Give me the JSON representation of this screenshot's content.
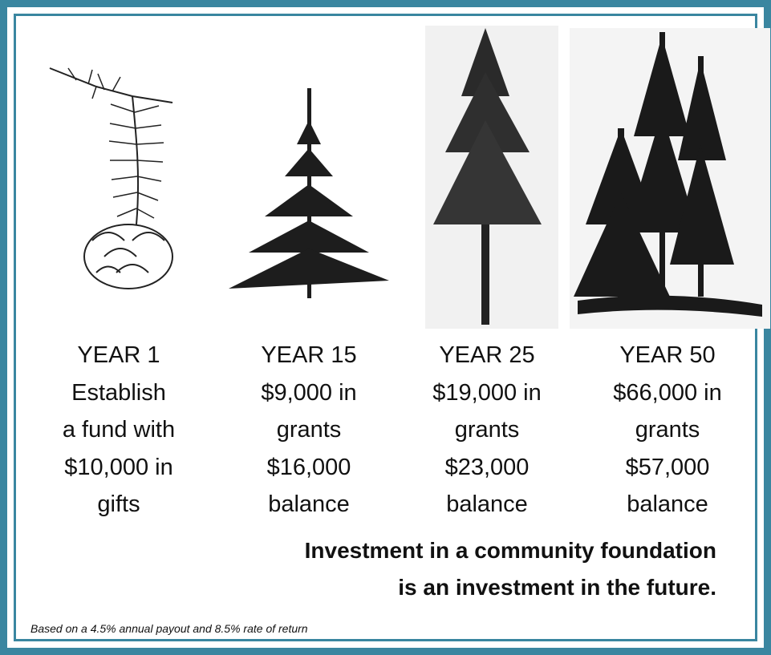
{
  "columns": [
    {
      "lines": [
        "YEAR 1",
        "Establish",
        "a fund with",
        "$10,000 in",
        "gifts"
      ]
    },
    {
      "lines": [
        "YEAR 15",
        "$9,000 in",
        "grants",
        "$16,000",
        "balance"
      ]
    },
    {
      "lines": [
        "YEAR 25",
        "$19,000 in",
        "grants",
        "$23,000",
        "balance"
      ]
    },
    {
      "lines": [
        "YEAR 50",
        "$66,000 in",
        "grants",
        "$57,000",
        "balance"
      ]
    }
  ],
  "tagline": [
    "Investment in a community foundation",
    "is an investment in the future."
  ],
  "footnote": "Based on a 4.5% annual payout and 8.5% rate of return"
}
